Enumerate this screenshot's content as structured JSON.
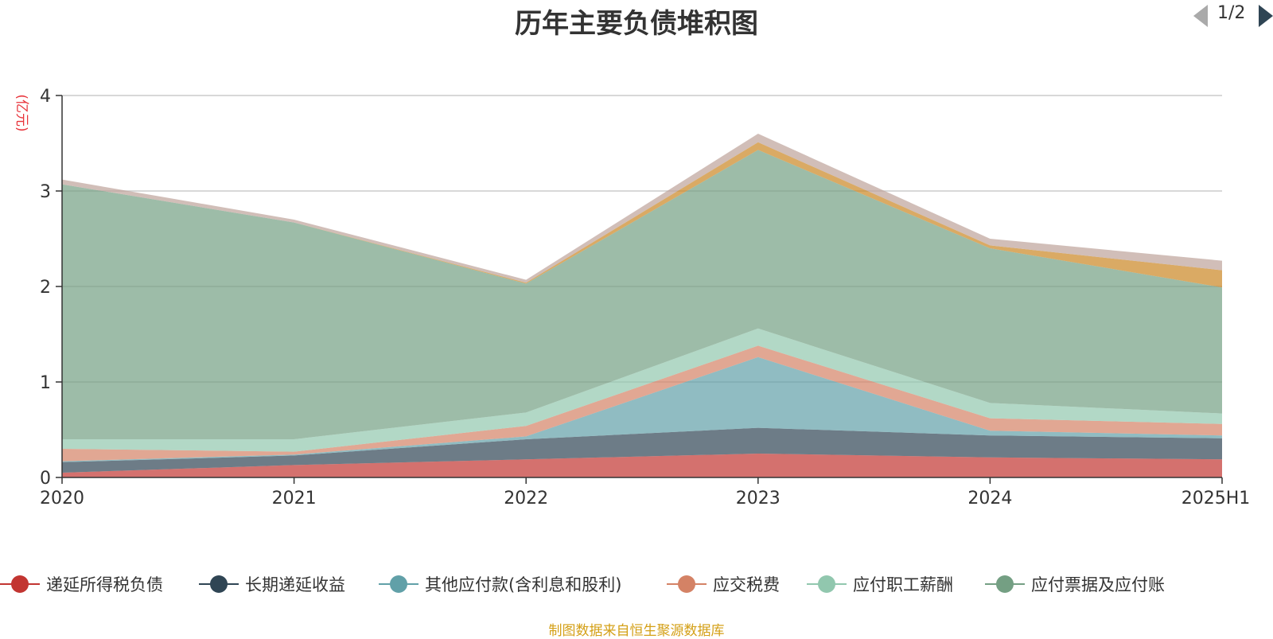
{
  "chart_data": {
    "type": "area",
    "stacked": true,
    "title": "历年主要负债堆积图",
    "ylabel": "(亿元)",
    "xlabel": "",
    "categories": [
      "2020",
      "2021",
      "2022",
      "2023",
      "2024",
      "2025H1"
    ],
    "ylim": [
      0,
      4
    ],
    "yticks": [
      0,
      1,
      2,
      3,
      4
    ],
    "grid": true,
    "legend_position": "bottom",
    "series": [
      {
        "name": "递延所得税负债",
        "color": "#c23531",
        "values": [
          0.05,
          0.13,
          0.19,
          0.25,
          0.21,
          0.19
        ]
      },
      {
        "name": "长期递延收益",
        "color": "#2f4554",
        "values": [
          0.11,
          0.1,
          0.21,
          0.27,
          0.23,
          0.22
        ]
      },
      {
        "name": "其他应付款(含利息和股利)",
        "color": "#61a0a8",
        "values": [
          0.01,
          0.01,
          0.03,
          0.74,
          0.05,
          0.03
        ]
      },
      {
        "name": "应交税费",
        "color": "#d48265",
        "values": [
          0.13,
          0.03,
          0.11,
          0.12,
          0.13,
          0.12
        ]
      },
      {
        "name": "应付职工薪酬",
        "color": "#91c7ae",
        "values": [
          0.1,
          0.13,
          0.14,
          0.18,
          0.16,
          0.11
        ]
      },
      {
        "name": "应付票据及应付账款",
        "color": "#749f83",
        "values": [
          2.67,
          2.27,
          1.35,
          1.87,
          1.62,
          1.32
        ]
      },
      {
        "name": "",
        "color": "#ca8622",
        "values": [
          0.0,
          0.0,
          0.01,
          0.08,
          0.03,
          0.18
        ]
      },
      {
        "name": "",
        "color": "#bda29a",
        "values": [
          0.05,
          0.03,
          0.03,
          0.09,
          0.07,
          0.1
        ]
      }
    ]
  },
  "legend": {
    "visible_items": [
      {
        "label": "递延所得税负债",
        "color": "#c23531"
      },
      {
        "label": "长期递延收益",
        "color": "#2f4554"
      },
      {
        "label": "其他应付款(含利息和股利)",
        "color": "#61a0a8"
      },
      {
        "label": "应交税费",
        "color": "#d48265"
      },
      {
        "label": "应付职工薪酬",
        "color": "#91c7ae"
      },
      {
        "label": "应付票据及应付账",
        "color": "#749f83"
      }
    ],
    "page_indicator": "1/2"
  },
  "source_note": "制图数据来自恒生聚源数据库"
}
